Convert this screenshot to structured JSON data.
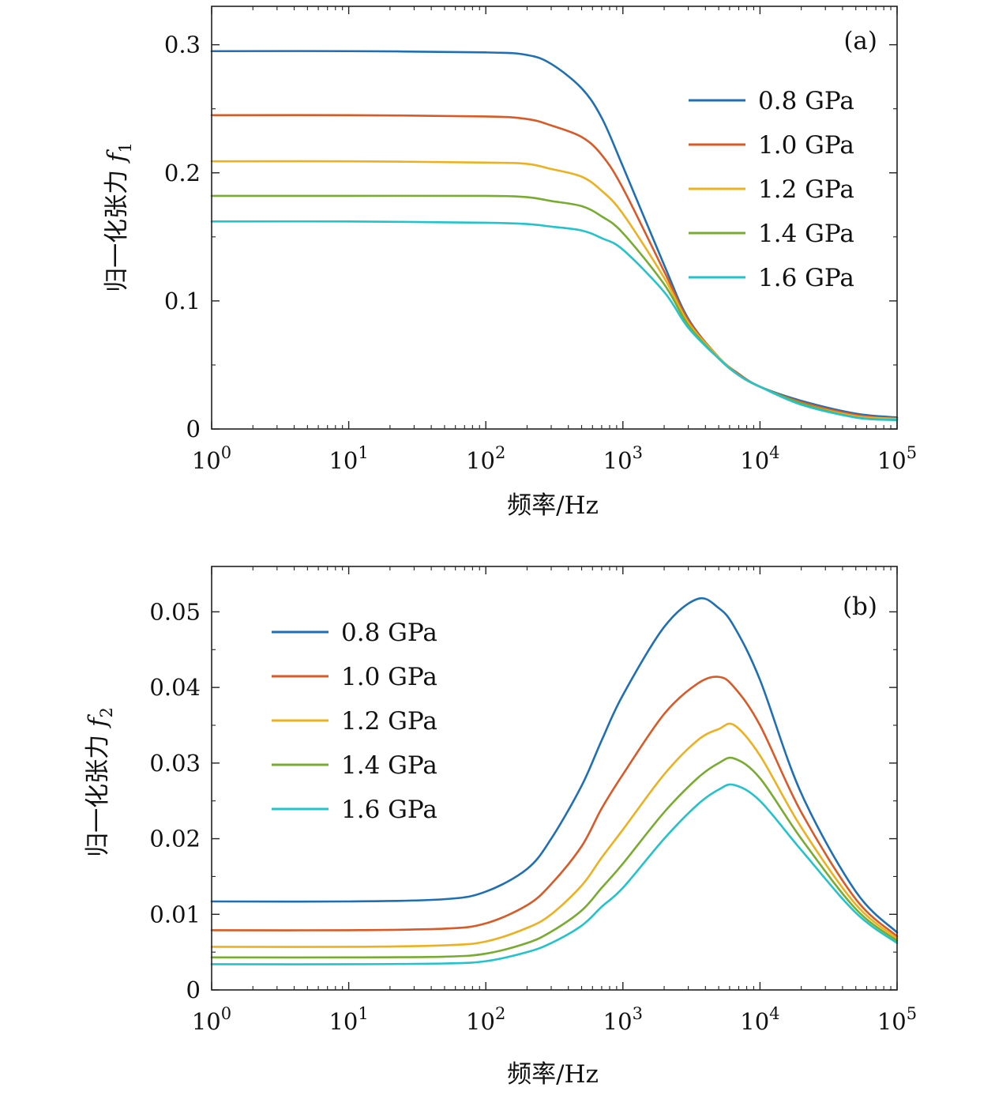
{
  "chart_data": [
    {
      "type": "line",
      "panel_label": "(a)",
      "xlabel": "频率/Hz",
      "ylabel": "归一化张力 f1",
      "ylabel_base": "归一化张力 ",
      "ylabel_var": "f",
      "ylabel_sub": "1",
      "xscale": "log",
      "xlim": [
        1,
        100000
      ],
      "ylim": [
        0,
        0.33
      ],
      "x_ticks": [
        {
          "value": 1,
          "base": "10",
          "exp": "0"
        },
        {
          "value": 10,
          "base": "10",
          "exp": "1"
        },
        {
          "value": 100,
          "base": "10",
          "exp": "2"
        },
        {
          "value": 1000,
          "base": "10",
          "exp": "3"
        },
        {
          "value": 10000,
          "base": "10",
          "exp": "4"
        },
        {
          "value": 100000,
          "base": "10",
          "exp": "5"
        }
      ],
      "y_ticks": [
        {
          "value": 0,
          "label": "0"
        },
        {
          "value": 0.1,
          "label": "0.1"
        },
        {
          "value": 0.2,
          "label": "0.2"
        },
        {
          "value": 0.3,
          "label": "0.3"
        }
      ],
      "y_minor_ticks": [
        0.05,
        0.15,
        0.25
      ],
      "legend_position": "top-right",
      "grid": false,
      "x": [
        1,
        10,
        100,
        200,
        300,
        500,
        700,
        1000,
        2000,
        3000,
        5000,
        7000,
        10000,
        20000,
        50000,
        100000
      ],
      "series": [
        {
          "name": "0.8 GPa",
          "color": "#1f6fb4",
          "values": [
            0.295,
            0.295,
            0.294,
            0.292,
            0.285,
            0.266,
            0.243,
            0.205,
            0.128,
            0.086,
            0.056,
            0.043,
            0.033,
            0.022,
            0.012,
            0.009
          ]
        },
        {
          "name": "1.0 GPa",
          "color": "#d95a26",
          "values": [
            0.245,
            0.245,
            0.244,
            0.242,
            0.237,
            0.228,
            0.214,
            0.188,
            0.123,
            0.085,
            0.056,
            0.043,
            0.033,
            0.021,
            0.011,
            0.008
          ]
        },
        {
          "name": "1.2 GPa",
          "color": "#edb120",
          "values": [
            0.209,
            0.209,
            0.208,
            0.207,
            0.203,
            0.197,
            0.186,
            0.168,
            0.118,
            0.083,
            0.056,
            0.042,
            0.033,
            0.02,
            0.01,
            0.008
          ]
        },
        {
          "name": "1.4 GPa",
          "color": "#77ac30",
          "values": [
            0.182,
            0.182,
            0.182,
            0.181,
            0.178,
            0.174,
            0.166,
            0.153,
            0.113,
            0.081,
            0.055,
            0.042,
            0.033,
            0.02,
            0.009,
            0.007
          ]
        },
        {
          "name": "1.6 GPa",
          "color": "#22c3cc",
          "values": [
            0.162,
            0.162,
            0.161,
            0.16,
            0.158,
            0.155,
            0.149,
            0.14,
            0.107,
            0.079,
            0.055,
            0.042,
            0.033,
            0.019,
            0.009,
            0.007
          ]
        }
      ]
    },
    {
      "type": "line",
      "panel_label": "(b)",
      "xlabel": "频率/Hz",
      "ylabel": "归一化张力 f2",
      "ylabel_base": "归一化张力 ",
      "ylabel_var": "f",
      "ylabel_sub": "2",
      "xscale": "log",
      "xlim": [
        1,
        100000
      ],
      "ylim": [
        0,
        0.056
      ],
      "x_ticks": [
        {
          "value": 1,
          "base": "10",
          "exp": "0"
        },
        {
          "value": 10,
          "base": "10",
          "exp": "1"
        },
        {
          "value": 100,
          "base": "10",
          "exp": "2"
        },
        {
          "value": 1000,
          "base": "10",
          "exp": "3"
        },
        {
          "value": 10000,
          "base": "10",
          "exp": "4"
        },
        {
          "value": 100000,
          "base": "10",
          "exp": "5"
        }
      ],
      "y_ticks": [
        {
          "value": 0,
          "label": "0"
        },
        {
          "value": 0.01,
          "label": "0.01"
        },
        {
          "value": 0.02,
          "label": "0.02"
        },
        {
          "value": 0.03,
          "label": "0.03"
        },
        {
          "value": 0.04,
          "label": "0.04"
        },
        {
          "value": 0.05,
          "label": "0.05"
        }
      ],
      "y_minor_ticks": [
        0.005,
        0.015,
        0.025,
        0.035,
        0.045
      ],
      "legend_position": "top-left",
      "grid": false,
      "x": [
        1,
        10,
        50,
        100,
        200,
        300,
        500,
        700,
        1000,
        2000,
        3500,
        5000,
        6500,
        10000,
        20000,
        50000,
        100000
      ],
      "series": [
        {
          "name": "0.8 GPa",
          "color": "#1f6fb4",
          "values": [
            0.0117,
            0.0117,
            0.012,
            0.013,
            0.016,
            0.02,
            0.027,
            0.033,
            0.039,
            0.048,
            0.0517,
            0.0505,
            0.048,
            0.041,
            0.026,
            0.013,
            0.0076
          ]
        },
        {
          "name": "1.0 GPa",
          "color": "#d95a26",
          "values": [
            0.0079,
            0.0079,
            0.0081,
            0.0088,
            0.0112,
            0.014,
            0.019,
            0.024,
            0.0285,
            0.0365,
            0.0405,
            0.0414,
            0.04,
            0.035,
            0.0235,
            0.012,
            0.0071
          ]
        },
        {
          "name": "1.2 GPa",
          "color": "#edb120",
          "values": [
            0.0057,
            0.0057,
            0.0059,
            0.0064,
            0.0082,
            0.01,
            0.0138,
            0.0175,
            0.0212,
            0.0285,
            0.033,
            0.0345,
            0.035,
            0.031,
            0.0215,
            0.0113,
            0.0068
          ]
        },
        {
          "name": "1.4 GPa",
          "color": "#77ac30",
          "values": [
            0.0043,
            0.0043,
            0.0044,
            0.0048,
            0.0062,
            0.0077,
            0.0105,
            0.0135,
            0.0167,
            0.0235,
            0.028,
            0.03,
            0.0306,
            0.028,
            0.02,
            0.0107,
            0.0065
          ]
        },
        {
          "name": "1.6 GPa",
          "color": "#22c3cc",
          "values": [
            0.0034,
            0.0034,
            0.0035,
            0.0038,
            0.005,
            0.0062,
            0.0085,
            0.011,
            0.0135,
            0.02,
            0.0245,
            0.0265,
            0.0271,
            0.025,
            0.0185,
            0.0102,
            0.0062
          ]
        }
      ]
    }
  ]
}
